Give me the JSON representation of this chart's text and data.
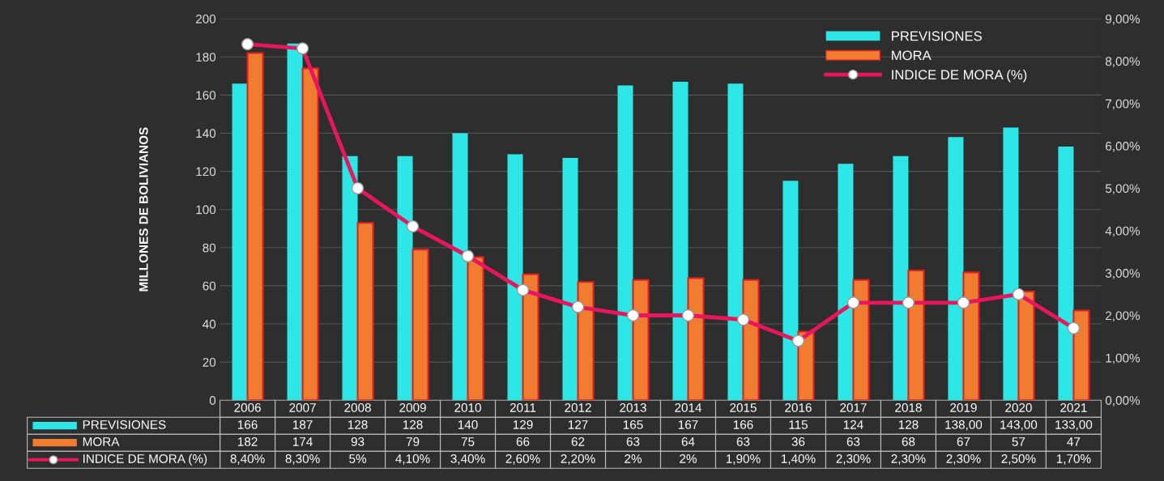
{
  "chart_data": {
    "type": "bar",
    "ylabel": "MILLONES DE BOLIVIANOS",
    "categories": [
      "2006",
      "2007",
      "2008",
      "2009",
      "2010",
      "2011",
      "2012",
      "2013",
      "2014",
      "2015",
      "2016",
      "2017",
      "2018",
      "2019",
      "2020",
      "2021"
    ],
    "series": [
      {
        "name": "PREVISIONES",
        "color": "#2ee6e6",
        "values": [
          166,
          187,
          128,
          128,
          140,
          129,
          127,
          165,
          167,
          166,
          115,
          124,
          128,
          138,
          143,
          133
        ],
        "value_labels": [
          "166",
          "187",
          "128",
          "128",
          "140",
          "129",
          "127",
          "165",
          "167",
          "166",
          "115",
          "124",
          "128",
          "138,00",
          "143,00",
          "133,00"
        ]
      },
      {
        "name": "MORA",
        "color": "#f07c32",
        "values": [
          182,
          174,
          93,
          79,
          75,
          66,
          62,
          63,
          64,
          63,
          36,
          63,
          68,
          67,
          57,
          47
        ],
        "value_labels": [
          "182",
          "174",
          "93",
          "79",
          "75",
          "66",
          "62",
          "63",
          "64",
          "63",
          "36",
          "63",
          "68",
          "67",
          "57",
          "47"
        ]
      },
      {
        "name": "INDICE DE MORA (%)",
        "type": "line",
        "axis": "y2",
        "color": "#e8175d",
        "values": [
          8.4,
          8.3,
          5,
          4.1,
          3.4,
          2.6,
          2.2,
          2,
          2,
          1.9,
          1.4,
          2.3,
          2.3,
          2.3,
          2.5,
          1.7
        ],
        "value_labels": [
          "8,40%",
          "8,30%",
          "5%",
          "4,10%",
          "3,40%",
          "2,60%",
          "2,20%",
          "2%",
          "2%",
          "1,90%",
          "1,40%",
          "2,30%",
          "2,30%",
          "2,30%",
          "2,50%",
          "1,70%"
        ]
      }
    ],
    "ylim": [
      0,
      200
    ],
    "yticks": [
      0,
      20,
      40,
      60,
      80,
      100,
      120,
      140,
      160,
      180,
      200
    ],
    "y2lim": [
      0,
      9
    ],
    "y2ticks": [
      {
        "value": 0,
        "label": "0,00%"
      },
      {
        "value": 1,
        "label": "1,00%"
      },
      {
        "value": 2,
        "label": "2,00%"
      },
      {
        "value": 3,
        "label": "3,00%"
      },
      {
        "value": 4,
        "label": "4,00%"
      },
      {
        "value": 5,
        "label": "5,00%"
      },
      {
        "value": 6,
        "label": "6,00%"
      },
      {
        "value": 7,
        "label": "7,00%"
      },
      {
        "value": 8,
        "label": "8,00%"
      },
      {
        "value": 9,
        "label": "9,00%"
      }
    ],
    "grid": "y",
    "legend": "top right",
    "marker": "circle",
    "line_style": "solid"
  }
}
